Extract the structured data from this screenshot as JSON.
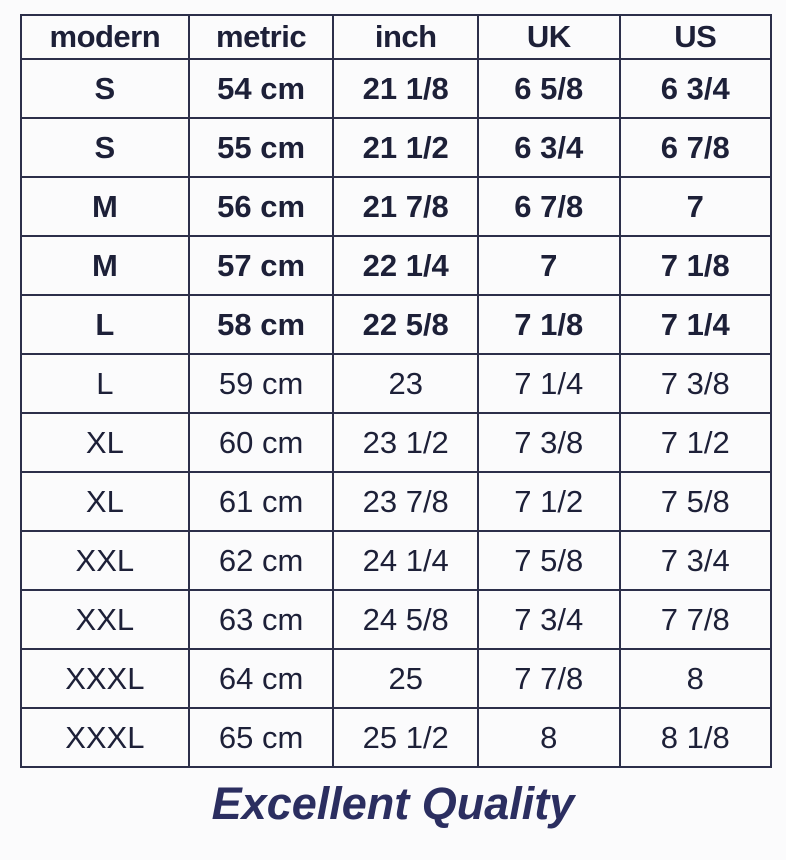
{
  "table": {
    "headers": [
      "modern",
      "metric",
      "inch",
      "UK",
      "US"
    ],
    "rows": [
      [
        "S",
        "54 cm",
        "21 1/8",
        "6 5/8",
        "6 3/4"
      ],
      [
        "S",
        "55 cm",
        "21 1/2",
        "6 3/4",
        "6 7/8"
      ],
      [
        "M",
        "56 cm",
        "21 7/8",
        "6 7/8",
        "7"
      ],
      [
        "M",
        "57 cm",
        "22 1/4",
        "7",
        "7 1/8"
      ],
      [
        "L",
        "58 cm",
        "22 5/8",
        "7 1/8",
        "7 1/4"
      ],
      [
        "L",
        "59 cm",
        "23",
        "7 1/4",
        "7 3/8"
      ],
      [
        "XL",
        "60 cm",
        "23 1/2",
        "7 3/8",
        "7 1/2"
      ],
      [
        "XL",
        "61 cm",
        "23 7/8",
        "7 1/2",
        "7 5/8"
      ],
      [
        "XXL",
        "62 cm",
        "24 1/4",
        "7 5/8",
        "7 3/4"
      ],
      [
        "XXL",
        "63 cm",
        "24 5/8",
        "7 3/4",
        "7 7/8"
      ],
      [
        "XXXL",
        "64 cm",
        "25",
        "7 7/8",
        "8"
      ],
      [
        "XXXL",
        "65 cm",
        "25 1/2",
        "8",
        "8 1/8"
      ]
    ]
  },
  "footer": {
    "text": "Excellent Quality"
  },
  "colors": {
    "text": "#1d2038",
    "footer": "#2b2e60"
  }
}
